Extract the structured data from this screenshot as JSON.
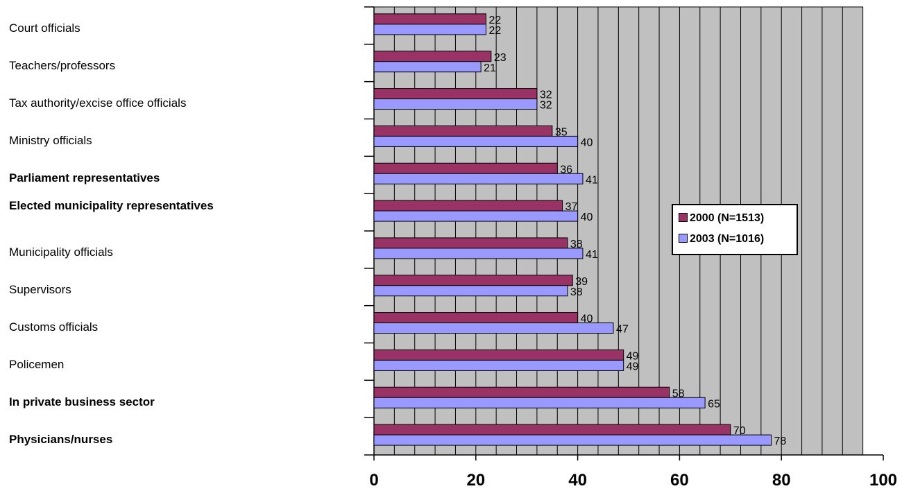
{
  "chart_data": {
    "type": "bar",
    "orientation": "horizontal",
    "categories": [
      "Court officials",
      "Teachers/professors",
      "Tax authority/excise office officials",
      "Ministry officials",
      "Parliament representatives",
      "Elected municipality representatives",
      "Municipality officials",
      "Supervisors",
      "Customs officials",
      "Policemen",
      "In private business sector",
      "Physicians/nurses"
    ],
    "bold_categories": [
      "Parliament representatives",
      "Elected municipality representatives",
      "In private business sector",
      "Physicians/nurses"
    ],
    "series": [
      {
        "name": "2000 (N=1513)",
        "color": "#993366",
        "values": [
          22,
          23,
          32,
          35,
          36,
          37,
          38,
          39,
          40,
          49,
          58,
          70
        ]
      },
      {
        "name": "2003 (N=1016)",
        "color": "#9999ff",
        "values": [
          22,
          21,
          32,
          40,
          41,
          40,
          41,
          38,
          47,
          49,
          65,
          78
        ]
      }
    ],
    "xlim": [
      0,
      100
    ],
    "x_ticks": [
      "0",
      "20",
      "40",
      "60",
      "80",
      "100"
    ],
    "plot_background": "#c0c0c0",
    "grid": true,
    "legend_position": "right",
    "title": "",
    "xlabel": "",
    "ylabel": ""
  }
}
